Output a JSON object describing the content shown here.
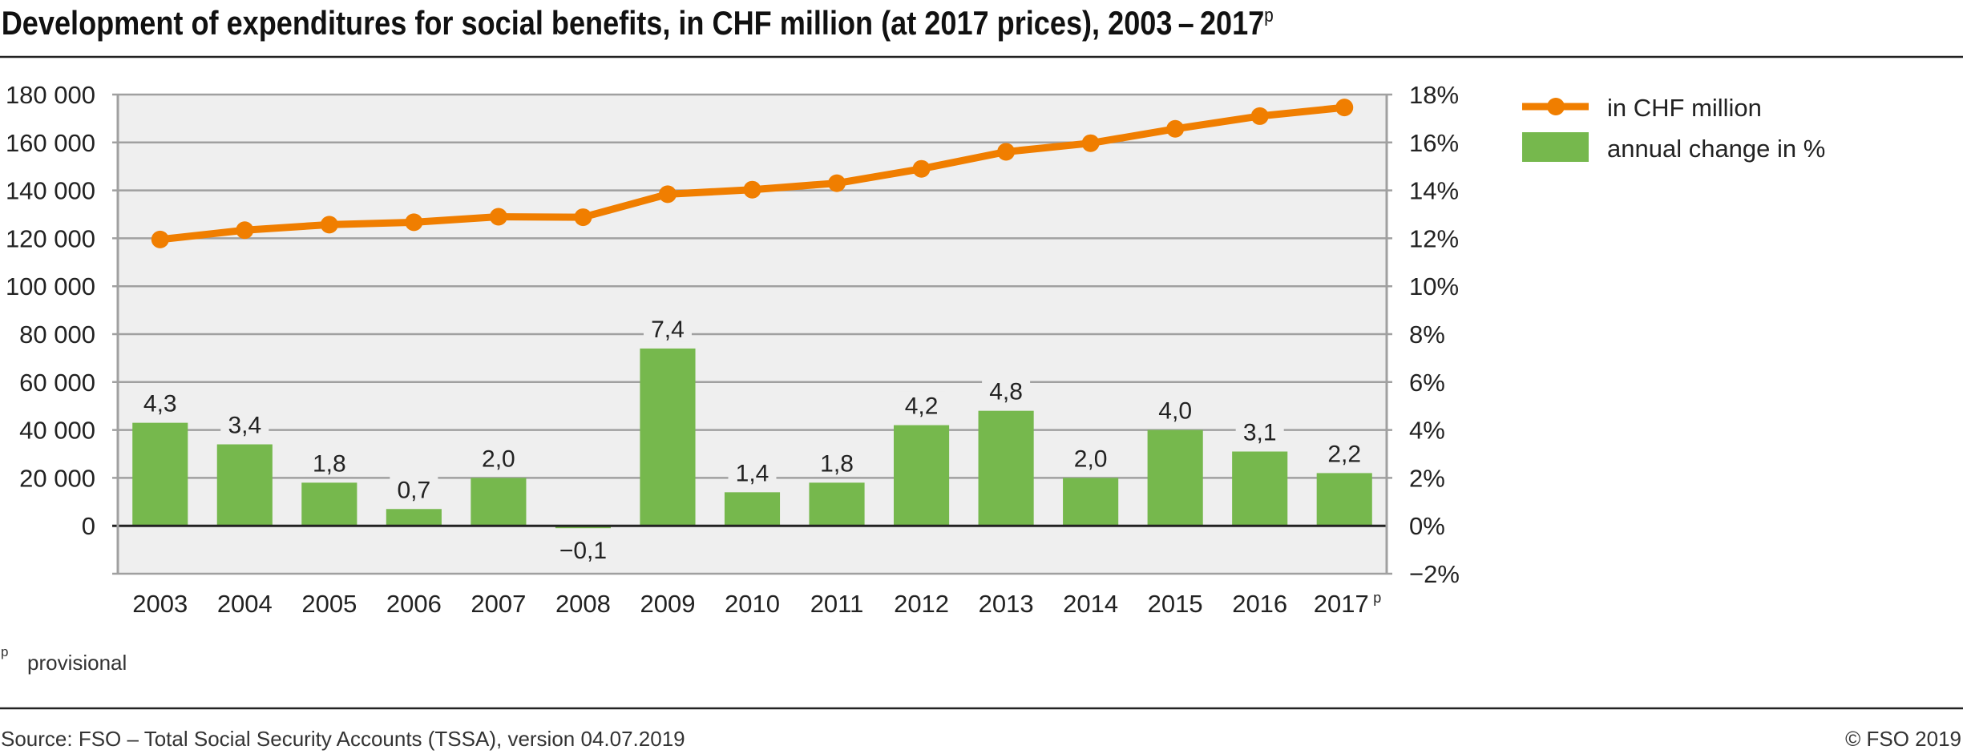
{
  "title": {
    "main": "Development of expenditures for social benefits, in CHF million (at 2017 prices), 2003 – 2017",
    "sup": "p"
  },
  "colors": {
    "line": "#F07E00",
    "bar": "#76B84D",
    "plot_bg": "#EFEFEF",
    "grid": "#A0A0A0",
    "zero_line": "#222222"
  },
  "legend": {
    "items": [
      {
        "label": "in CHF million",
        "type": "line-marker"
      },
      {
        "label": "annual change in %",
        "type": "bar"
      }
    ]
  },
  "footnote": {
    "marker": "p",
    "text": "provisional"
  },
  "footer": {
    "source": "Source: FSO – Total Social Security Accounts (TSSA), version 04.07.2019",
    "copyright": "© FSO 2019"
  },
  "chart_data": {
    "type": "bar+line",
    "title": "Development of expenditures for social benefits, in CHF million (at 2017 prices), 2003–2017p",
    "categories": [
      "2003",
      "2004",
      "2005",
      "2006",
      "2007",
      "2008",
      "2009",
      "2010",
      "2011",
      "2012",
      "2013",
      "2014",
      "2015",
      "2016",
      "2017"
    ],
    "category_superscripts": {
      "2017": "p"
    },
    "series": [
      {
        "name": "in CHF million",
        "type": "line",
        "axis": "left",
        "values": [
          119500,
          123400,
          125700,
          126700,
          129000,
          128800,
          138400,
          140300,
          143000,
          149000,
          156100,
          159700,
          165700,
          171000,
          174600
        ]
      },
      {
        "name": "annual change in %",
        "type": "bar",
        "axis": "right",
        "values": [
          4.3,
          3.4,
          1.8,
          0.7,
          2.0,
          -0.1,
          7.4,
          1.4,
          1.8,
          4.2,
          4.8,
          2.0,
          4.0,
          3.1,
          2.2
        ],
        "labels": [
          "4,3",
          "3,4",
          "1,8",
          "0,7",
          "2,0",
          "−0,1",
          "7,4",
          "1,4",
          "1,8",
          "4,2",
          "4,8",
          "2,0",
          "4,0",
          "3,1",
          "2,2"
        ]
      }
    ],
    "y_left": {
      "ylim": [
        -20000,
        180000
      ],
      "ticks": [
        0,
        20000,
        40000,
        60000,
        80000,
        100000,
        120000,
        140000,
        160000,
        180000
      ],
      "tick_labels": [
        "0",
        "20 000",
        "40 000",
        "60 000",
        "80 000",
        "100 000",
        "120 000",
        "140 000",
        "160 000",
        "180 000"
      ]
    },
    "y_right": {
      "ylim": [
        -2,
        18
      ],
      "ticks": [
        -2,
        0,
        2,
        4,
        6,
        8,
        10,
        12,
        14,
        16,
        18
      ],
      "tick_labels": [
        "−2%",
        "0%",
        "2%",
        "4%",
        "6%",
        "8%",
        "10%",
        "12%",
        "14%",
        "16%",
        "18%"
      ]
    },
    "xlabel": "",
    "ylabel": "",
    "grid": true,
    "legend_position": "top-right"
  }
}
